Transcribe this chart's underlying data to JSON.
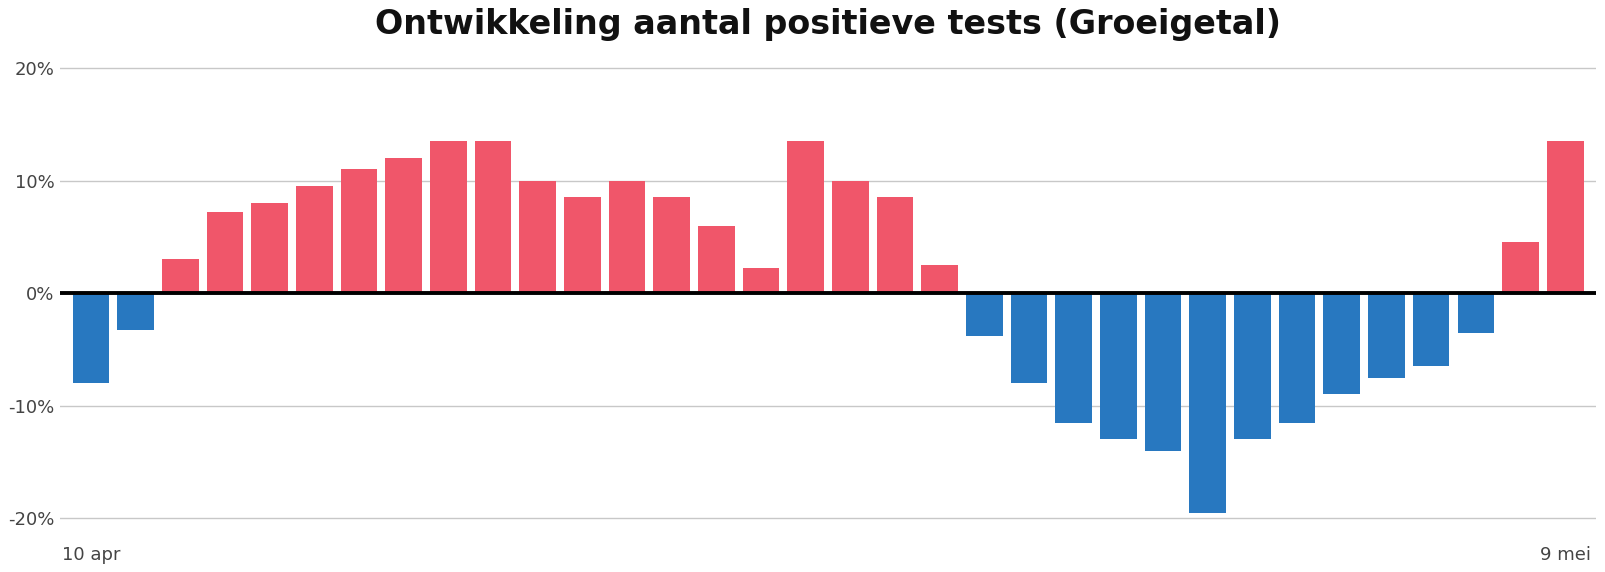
{
  "title": "Ontwikkeling aantal positieve tests (Groeigetal)",
  "title_fontsize": 24,
  "title_fontweight": "bold",
  "xlabel_left": "10 apr",
  "xlabel_right": "9 mei",
  "ylim": [
    -0.22,
    0.22
  ],
  "yticks": [
    -0.2,
    -0.1,
    0.0,
    0.1,
    0.2
  ],
  "ytick_labels": [
    "-20%",
    "-10%",
    "0%",
    "10%",
    "20%"
  ],
  "color_positive": "#F0566A",
  "color_negative": "#2878C0",
  "background_color": "#ffffff",
  "grid_color": "#c8c8c8",
  "values": [
    -0.08,
    -0.033,
    0.03,
    0.072,
    0.08,
    0.095,
    0.11,
    0.12,
    0.135,
    0.135,
    0.1,
    0.085,
    0.1,
    0.085,
    0.06,
    0.022,
    0.135,
    0.1,
    0.085,
    0.025,
    -0.038,
    -0.08,
    -0.115,
    -0.13,
    -0.14,
    -0.195,
    -0.13,
    -0.115,
    -0.09,
    -0.075,
    -0.065,
    -0.035,
    0.045,
    0.135
  ]
}
